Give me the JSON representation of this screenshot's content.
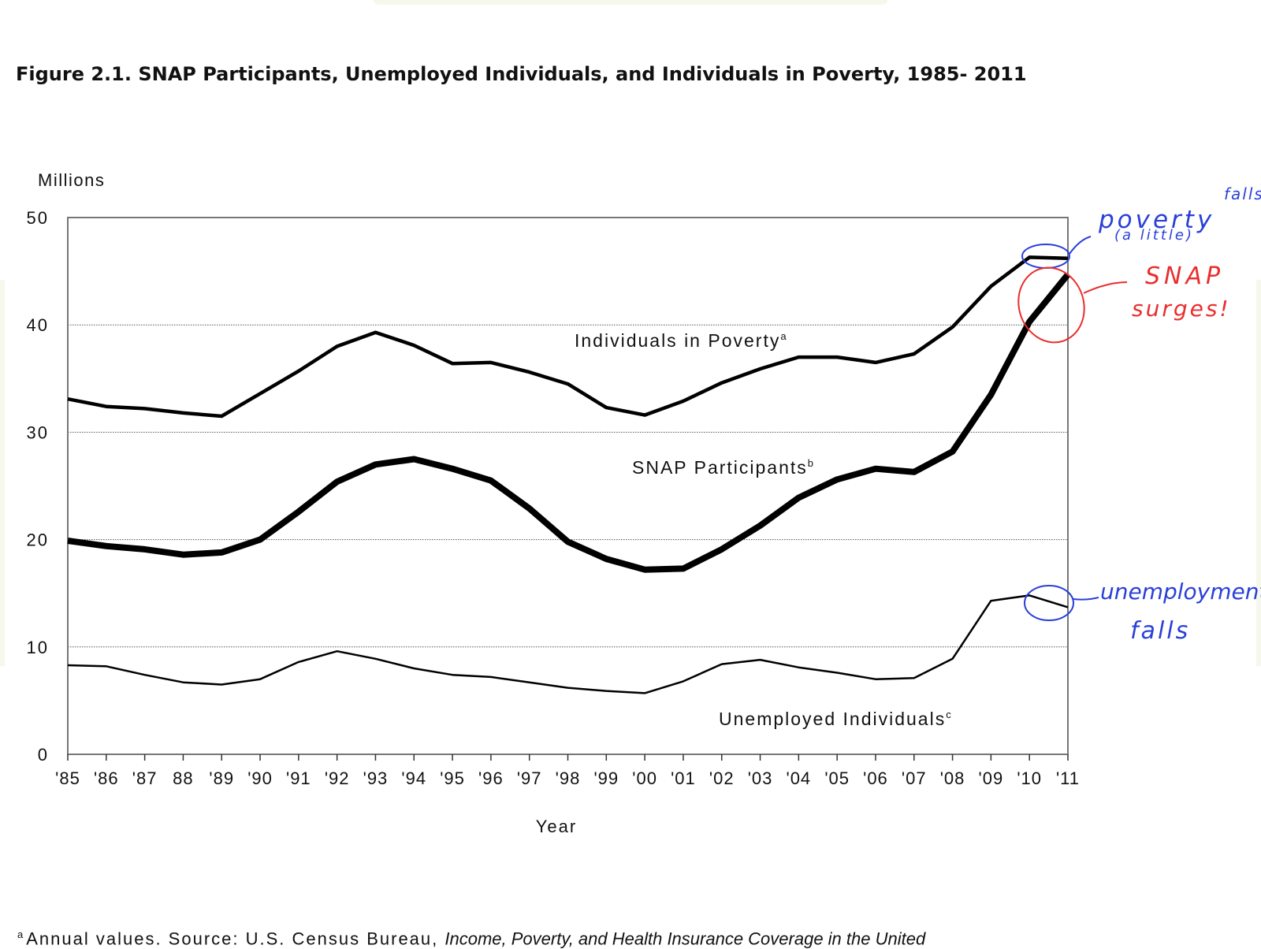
{
  "page": {
    "figure_title": "Figure 2.1. SNAP Participants, Unemployed Individuals, and Individuals in Poverty, 1985- 2011",
    "footnote_marker": "a",
    "footnote_text": "Annual values. Source: U.S. Census Bureau, ",
    "footnote_italic": "Income, Poverty, and Health Insurance Coverage in the United"
  },
  "chart_data": {
    "type": "line",
    "title": "Figure 2.1. SNAP Participants, Unemployed Individuals, and Individuals in Poverty, 1985- 2011",
    "ylabel": "Millions",
    "xlabel": "Year",
    "ylim": [
      0,
      50
    ],
    "yticks": [
      0,
      10,
      20,
      30,
      40,
      50
    ],
    "grid": "horizontal dotted",
    "x": [
      "'85",
      "'86",
      "'87",
      "88",
      "'89",
      "'90",
      "'91",
      "'92",
      "'93",
      "'94",
      "'95",
      "'96",
      "'97",
      "'98",
      "'99",
      "'00",
      "'01",
      "'02",
      "'03",
      "'04",
      "'05",
      "'06",
      "'07",
      "'08",
      "'09",
      "'10",
      "'11"
    ],
    "series": [
      {
        "name": "Individuals in Poverty",
        "label_sup": "a",
        "color": "#000000",
        "values": [
          33.1,
          32.4,
          32.2,
          31.8,
          31.5,
          33.6,
          35.7,
          38.0,
          39.3,
          38.1,
          36.4,
          36.5,
          35.6,
          34.5,
          32.3,
          31.6,
          32.9,
          34.6,
          35.9,
          37.0,
          37.0,
          36.5,
          37.3,
          39.8,
          43.6,
          46.3,
          46.2
        ]
      },
      {
        "name": "SNAP Participants",
        "label_sup": "b",
        "color": "#000000",
        "values": [
          19.9,
          19.4,
          19.1,
          18.6,
          18.8,
          20.0,
          22.6,
          25.4,
          27.0,
          27.5,
          26.6,
          25.5,
          22.9,
          19.8,
          18.2,
          17.2,
          17.3,
          19.1,
          21.3,
          23.9,
          25.6,
          26.6,
          26.3,
          28.2,
          33.5,
          40.3,
          44.7
        ]
      },
      {
        "name": "Unemployed Individuals",
        "label_sup": "c",
        "color": "#000000",
        "values": [
          8.3,
          8.2,
          7.4,
          6.7,
          6.5,
          7.0,
          8.6,
          9.6,
          8.9,
          8.0,
          7.4,
          7.2,
          6.7,
          6.2,
          5.9,
          5.7,
          6.8,
          8.4,
          8.8,
          8.1,
          7.6,
          7.0,
          7.1,
          8.9,
          14.3,
          14.8,
          13.7
        ]
      }
    ],
    "annotations": [
      {
        "text_lines": [
          "poverty",
          "(a little)",
          "falls"
        ],
        "color": "#2a3fd8",
        "target_series": "Individuals in Poverty"
      },
      {
        "text_lines": [
          "SNAP",
          "surges!"
        ],
        "color": "#ea2d2d",
        "target_series": "SNAP Participants"
      },
      {
        "text_lines": [
          "unemployment",
          "falls"
        ],
        "color": "#2a3fd8",
        "target_series": "Unemployed Individuals"
      }
    ]
  }
}
